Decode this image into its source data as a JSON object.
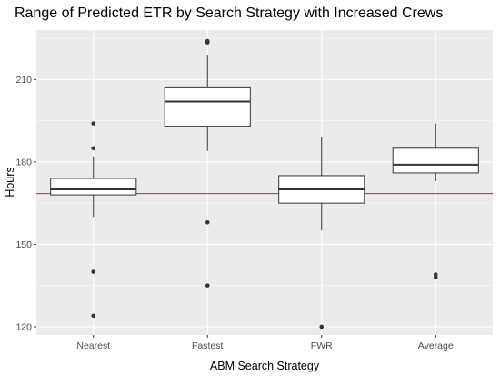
{
  "chart_data": {
    "type": "boxplot",
    "title": "Range of Predicted ETR by Search Strategy with Increased Crews",
    "xlabel": "ABM Search Strategy",
    "ylabel": "Hours",
    "categories": [
      "Nearest",
      "Fastest",
      "FWR",
      "Average"
    ],
    "yticks": [
      120,
      150,
      180,
      210
    ],
    "ylim": [
      117,
      228
    ],
    "grid": true,
    "colors": {
      "panel_bg": "#ebebeb",
      "grid_major": "#ffffff",
      "box_fill": "#ffffff",
      "box_stroke": "#333333",
      "reference_line": "#e31a1c"
    },
    "reference_line": {
      "y": 168.5
    },
    "boxes": [
      {
        "category": "Nearest",
        "whisker_low": 160,
        "q1": 168,
        "median": 170,
        "q3": 174,
        "whisker_high": 182,
        "outliers": [
          194,
          185,
          140,
          124
        ]
      },
      {
        "category": "Fastest",
        "whisker_low": 184,
        "q1": 193,
        "median": 202,
        "q3": 207,
        "whisker_high": 219,
        "outliers": [
          224,
          223.5,
          158,
          135
        ]
      },
      {
        "category": "FWR",
        "whisker_low": 155,
        "q1": 165,
        "median": 170,
        "q3": 175,
        "whisker_high": 189,
        "outliers": [
          120
        ]
      },
      {
        "category": "Average",
        "whisker_low": 173,
        "q1": 176,
        "median": 179,
        "q3": 185,
        "whisker_high": 194,
        "outliers": [
          139,
          138
        ]
      }
    ]
  }
}
